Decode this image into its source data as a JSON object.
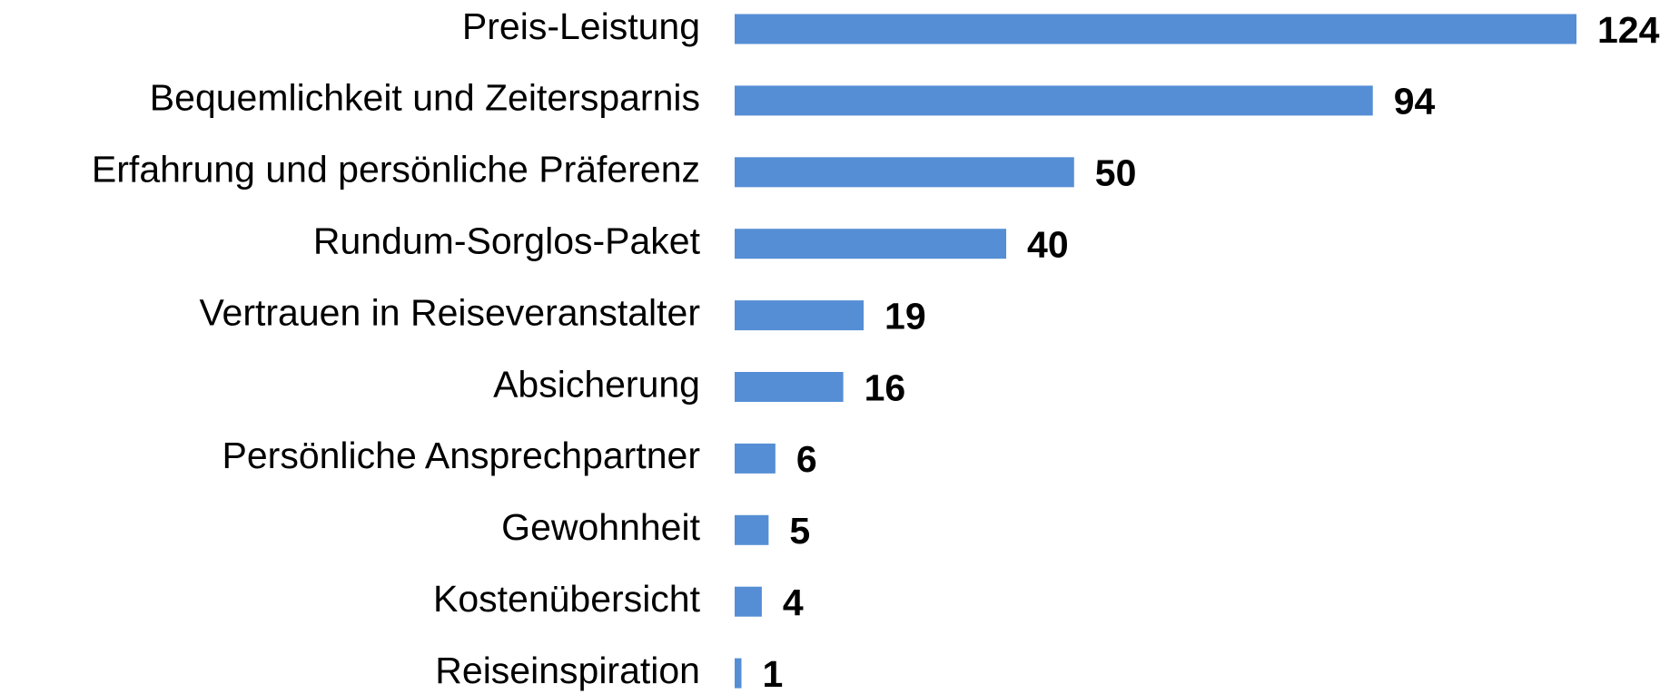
{
  "chart_data": {
    "type": "bar",
    "orientation": "horizontal",
    "categories": [
      "Preis-Leistung",
      "Bequemlichkeit und Zeitersparnis",
      "Erfahrung und persönliche Präferenz",
      "Rundum-Sorglos-Paket",
      "Vertrauen in Reiseveranstalter",
      "Absicherung",
      "Persönliche Ansprechpartner",
      "Gewohnheit",
      "Kostenübersicht",
      "Reiseinspiration"
    ],
    "values": [
      124,
      94,
      50,
      40,
      19,
      16,
      6,
      5,
      4,
      1
    ],
    "color": "#558ed5"
  }
}
